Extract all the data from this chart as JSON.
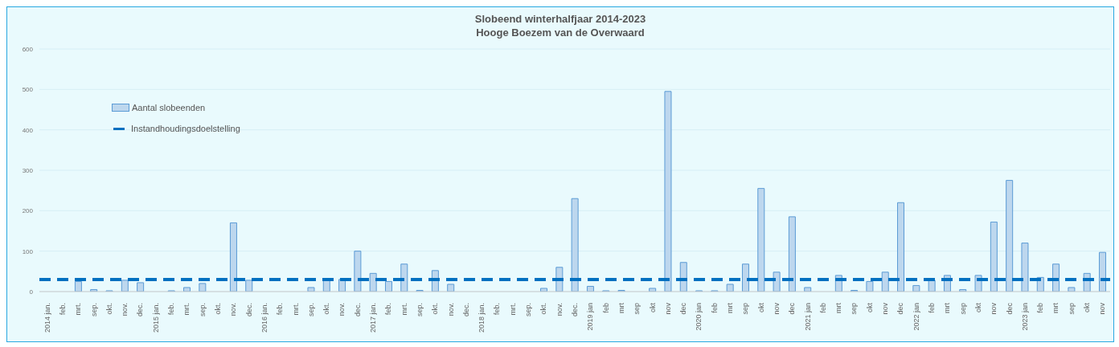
{
  "chart_data": {
    "type": "bar",
    "title": "Slobeend winterhalfjaar 2014-2023",
    "subtitle": "Hooge Boezem van de Overwaard",
    "categories": [
      "2014 jan.",
      "feb.",
      "mrt.",
      "sep.",
      "okt.",
      "nov.",
      "dec.",
      "2015 jan.",
      "feb.",
      "mrt.",
      "sep.",
      "okt.",
      "nov.",
      "dec.",
      "2016 jan.",
      "feb.",
      "mrt.",
      "sep.",
      "okt.",
      "nov.",
      "dec.",
      "2017 jan.",
      "feb.",
      "mrt.",
      "sep.",
      "okt.",
      "nov.",
      "dec.",
      "2018 jan.",
      "feb.",
      "mrt.",
      "sep.",
      "okt.",
      "nov.",
      "dec.",
      "2019 jan",
      "feb",
      "mrt",
      "sep",
      "okt",
      "nov",
      "dec",
      "2020 jan",
      "feb",
      "mrt",
      "sep",
      "okt",
      "nov",
      "dec",
      "2021 jan",
      "feb",
      "mrt",
      "sep",
      "okt",
      "nov",
      "dec",
      "2022 jan",
      "feb",
      "mrt",
      "sep",
      "okt",
      "nov",
      "dec",
      "2023 jan",
      "feb",
      "mrt",
      "sep",
      "okt",
      "nov"
    ],
    "series": [
      {
        "name": "Aantal slobeenden",
        "color": "#bdd7ee",
        "values": [
          0,
          0,
          25,
          5,
          2,
          28,
          22,
          0,
          2,
          10,
          20,
          0,
          170,
          28,
          0,
          0,
          0,
          10,
          28,
          30,
          100,
          45,
          25,
          68,
          3,
          52,
          18,
          0,
          0,
          0,
          0,
          0,
          8,
          60,
          230,
          13,
          2,
          3,
          0,
          8,
          495,
          72,
          2,
          2,
          18,
          68,
          255,
          48,
          185,
          10,
          0,
          40,
          3,
          25,
          48,
          220,
          15,
          28,
          40,
          5,
          40,
          172,
          275,
          120,
          35,
          68,
          10,
          45,
          97
        ]
      }
    ],
    "ref_lines": [
      {
        "axis": "y",
        "value": 30,
        "label": "Instandhoudingsdoelstelling",
        "color": "#0070c0",
        "line_style": "dashed"
      }
    ],
    "ylim": [
      0,
      600
    ],
    "yticks": [
      0,
      100,
      200,
      300,
      400,
      500,
      600
    ],
    "grid": "y",
    "legend": "top left"
  }
}
